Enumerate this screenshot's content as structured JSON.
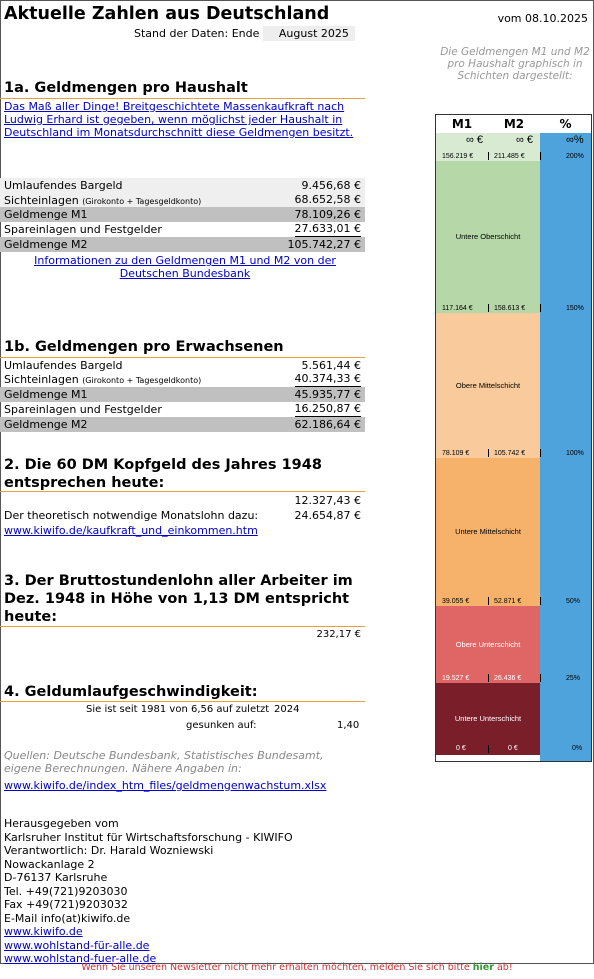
{
  "header": {
    "title": "Aktuelle Zahlen aus Deutschland",
    "date": "vom 08.10.2025",
    "stand_label": "Stand der Daten: Ende",
    "stand_value": "August 2025",
    "graph_hint": "Die Geldmengen M1 und M2 pro Haushalt graphisch in Schichten dargestellt:"
  },
  "sec1a": {
    "heading": "1a. Geldmengen pro Haushalt",
    "intro_link": "Das Maß aller Dinge! Breitgeschichtete Massenkaufkraft nach Ludwig Erhard ist gegeben, wenn möglichst jeder Haushalt in Deutschland im Monatsdurchschnitt diese Geldmengen besitzt.",
    "rows": [
      {
        "label": "Umlaufendes Bargeld",
        "note": "",
        "value": "9.456,68 €"
      },
      {
        "label": "Sichteinlagen",
        "note": "(Girokonto + Tagesgeldkonto)",
        "value": "68.652,58 €"
      },
      {
        "label": "Geldmenge M1",
        "note": "",
        "value": "78.109,26 €"
      },
      {
        "label": "Spareinlagen und Festgelder",
        "note": "",
        "value": "27.633,01 €"
      },
      {
        "label": "Geldmenge M2",
        "note": "",
        "value": "105.742,27 €"
      }
    ],
    "info_link": "Informationen zu den Geldmengen M1 und M2 von der Deutschen Bundesbank"
  },
  "sec1b": {
    "heading": "1b. Geldmengen pro Erwachsenen",
    "rows": [
      {
        "label": "Umlaufendes Bargeld",
        "note": "",
        "value": "5.561,44 €"
      },
      {
        "label": "Sichteinlagen",
        "note": "(Girokonto + Tagesgeldkonto)",
        "value": "40.374,33 €"
      },
      {
        "label": "Geldmenge M1",
        "note": "",
        "value": "45.935,77 €"
      },
      {
        "label": "Spareinlagen und Festgelder",
        "note": "",
        "value": "16.250,87 €"
      },
      {
        "label": "Geldmenge M2",
        "note": "",
        "value": "62.186,64 €"
      }
    ]
  },
  "sec2": {
    "heading": "2. Die 60 DM Kopfgeld des Jahres 1948 entsprechen heute:",
    "value": "12.327,43 €",
    "monthly_label": "Der theoretisch notwendige Monatslohn dazu:",
    "monthly_value": "24.654,87 €",
    "link": "www.kiwifo.de/kaufkraft_und_einkommen.htm"
  },
  "sec3": {
    "heading": "3. Der Bruttostundenlohn aller Arbeiter im Dez. 1948 in Höhe von 1,13 DM entspricht heute:",
    "value": "232,17 €"
  },
  "sec4": {
    "heading": "4. Geldumlaufgeschwindigkeit:",
    "line1": "Sie ist seit 1981 von 6,56 auf zuletzt",
    "year": "2024",
    "line2": "gesunken auf:",
    "value": "1,40"
  },
  "sources": {
    "text": "Quellen: Deutsche Bundesbank, Statistisches Bundesamt, eigene Berechnungen. Nähere Angaben in:",
    "link": "www.kiwifo.de/index_htm_files/geldmengenwachstum.xlsx"
  },
  "publisher": {
    "lines": [
      "Herausgegeben vom",
      "Karlsruher Institut für Wirtschaftsforschung - KIWIFO",
      "Verantwortlich: Dr. Harald Wozniewski",
      "Nowackanlage 2",
      "D-76137 Karlsruhe",
      "Tel. +49(721)9203030",
      "Fax +49(721)9203032",
      "E-Mail info(at)kiwifo.de"
    ],
    "links": [
      "www.kiwifo.de",
      "www.wohlstand-für-alle.de",
      "www.wohlstand-fuer-alle.de"
    ]
  },
  "footer": {
    "text_before": "Wenn Sie unseren Newsletter nicht mehr erhalten möchten, melden Sie sich bitte",
    "link": "hier",
    "text_after": "ab!"
  },
  "graph": {
    "headers": {
      "m1": "M1",
      "m2": "M2",
      "pct": "%"
    },
    "inf_m1": "∞ €",
    "inf_m2": "∞ €",
    "inf_pct": "∞%",
    "bands": [
      {
        "name": "Untere Oberschicht",
        "color": "#b6d7a8",
        "m1_top": "156.219 €",
        "m2_top": "211.485 €",
        "pct_top": "200%"
      },
      {
        "name": "Obere Mittelschicht",
        "color": "#f9cb9c",
        "m1_top": "117.164 €",
        "m2_top": "158.613 €",
        "pct_top": "150%"
      },
      {
        "name": "Untere Mittelschicht",
        "color": "#f6b26b",
        "m1_top": "78.109 €",
        "m2_top": "105.742 €",
        "pct_top": "100%"
      },
      {
        "name": "Obere Unterschicht",
        "color": "#e06666",
        "m1_top": "39.055 €",
        "m2_top": "52.871 €",
        "pct_top": "50%"
      },
      {
        "name": "Untere Unterschicht",
        "color": "#7a1f2a",
        "m1_top": "19.527 €",
        "m2_top": "26.436 €",
        "pct_top": "25%"
      }
    ],
    "bottom": {
      "m1": "0 €",
      "m2": "0 €",
      "pct": "0%"
    },
    "top_color": "#d9ead3"
  }
}
